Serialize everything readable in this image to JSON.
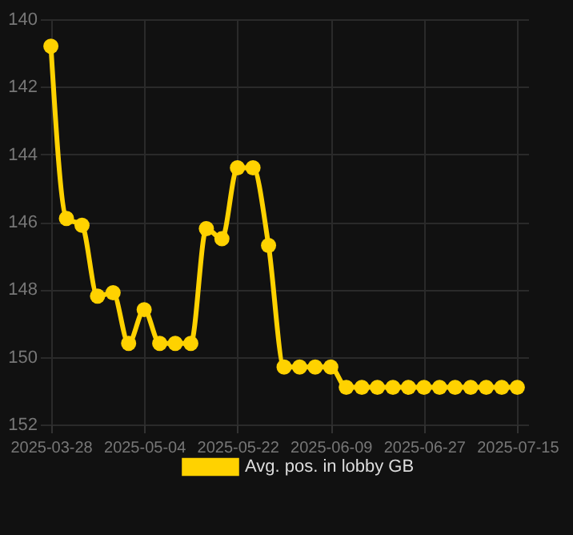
{
  "chart_data": {
    "type": "line",
    "categories": [
      "2025-03-28",
      null,
      null,
      null,
      null,
      null,
      "2025-05-04",
      null,
      null,
      null,
      null,
      null,
      "2025-05-22",
      null,
      null,
      null,
      null,
      null,
      "2025-06-09",
      null,
      null,
      null,
      null,
      null,
      "2025-06-27",
      null,
      null,
      null,
      null,
      null,
      "2025-07-15"
    ],
    "series": [
      {
        "name": "Avg. pos. in lobby GB",
        "color": "#ffd200",
        "values": [
          140.8,
          145.9,
          146.1,
          148.2,
          148.1,
          149.6,
          148.6,
          149.6,
          149.6,
          149.6,
          146.2,
          146.5,
          144.4,
          144.4,
          146.7,
          150.3,
          150.3,
          150.3,
          150.3,
          150.9,
          150.9,
          150.9,
          150.9,
          150.9,
          150.9,
          150.9,
          150.9,
          150.9,
          150.9,
          150.9,
          150.9
        ]
      }
    ],
    "ylim": [
      152,
      140
    ],
    "yticks": [
      140,
      142,
      144,
      146,
      148,
      150,
      152
    ],
    "grid": true,
    "legend": "bottom",
    "marker": "circle",
    "line_style": "solid"
  }
}
